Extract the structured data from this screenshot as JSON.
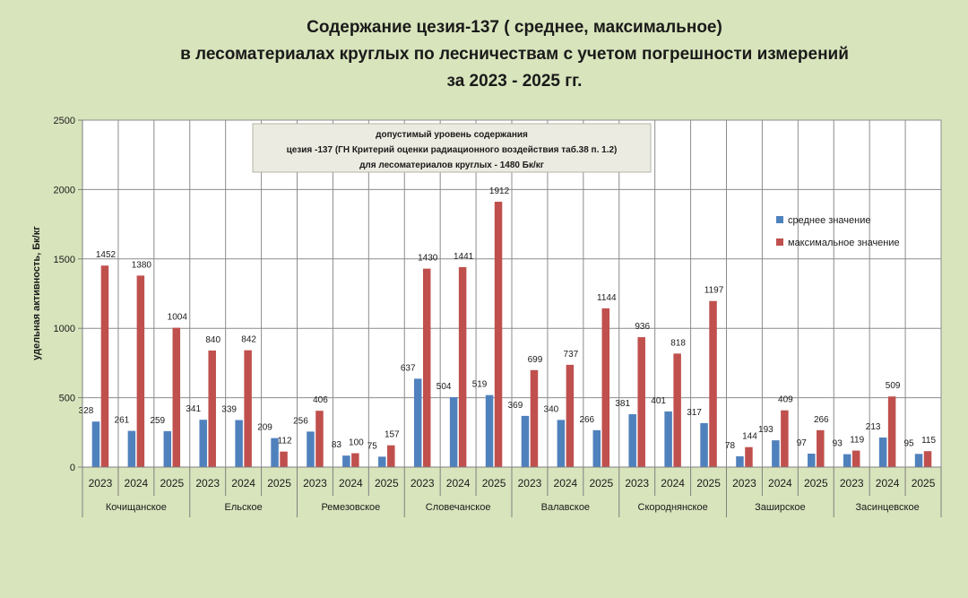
{
  "chart_data": {
    "type": "bar",
    "title_lines": [
      "Содержание цезия-137 ( среднее, максимальное)",
      "в лесоматериалах круглых по лесничествам  с учетом погрешности измерений",
      "за 2023 - 2025 гг."
    ],
    "ylabel": "удельная активность,  Бк/кг",
    "ylim": [
      0,
      2500
    ],
    "yticks": [
      0,
      500,
      1000,
      1500,
      2000,
      2500
    ],
    "grid": true,
    "legend_position": "right",
    "annotation_lines": [
      "допустимый  уровень содержания",
      "цезия -137  (ГН Критерий  оценки радиационного  воздействия таб.38 п. 1.2)",
      "для лесоматериалов  круглых - 1480 Бк/кг"
    ],
    "groups": [
      {
        "name": "Кочищанское",
        "years": [
          "2023",
          "2024",
          "2025"
        ]
      },
      {
        "name": "Ельское",
        "years": [
          "2023",
          "2024",
          "2025"
        ]
      },
      {
        "name": "Ремезовское",
        "years": [
          "2023",
          "2024",
          "2025"
        ]
      },
      {
        "name": "Словечанское",
        "years": [
          "2023",
          "2024",
          "2025"
        ]
      },
      {
        "name": "Валавское",
        "years": [
          "2023",
          "2024",
          "2025"
        ]
      },
      {
        "name": "Скороднянское",
        "years": [
          "2023",
          "2024",
          "2025"
        ]
      },
      {
        "name": "Заширское",
        "years": [
          "2023",
          "2024",
          "2025"
        ]
      },
      {
        "name": "Засинцевское",
        "years": [
          "2023",
          "2024",
          "2025"
        ]
      }
    ],
    "series": [
      {
        "name": "среднее  значение",
        "color": "#4f81bd",
        "values": [
          328,
          261,
          259,
          341,
          339,
          209,
          256,
          83,
          75,
          637,
          504,
          519,
          369,
          340,
          266,
          381,
          401,
          317,
          78,
          193,
          97,
          93,
          213,
          95
        ]
      },
      {
        "name": "максимальное значение",
        "color": "#c0504d",
        "values": [
          1452,
          1380,
          1004,
          840,
          842,
          112,
          406,
          100,
          157,
          1430,
          1441,
          1912,
          699,
          737,
          1144,
          936,
          818,
          1197,
          144,
          409,
          266,
          119,
          509,
          115
        ]
      }
    ]
  }
}
